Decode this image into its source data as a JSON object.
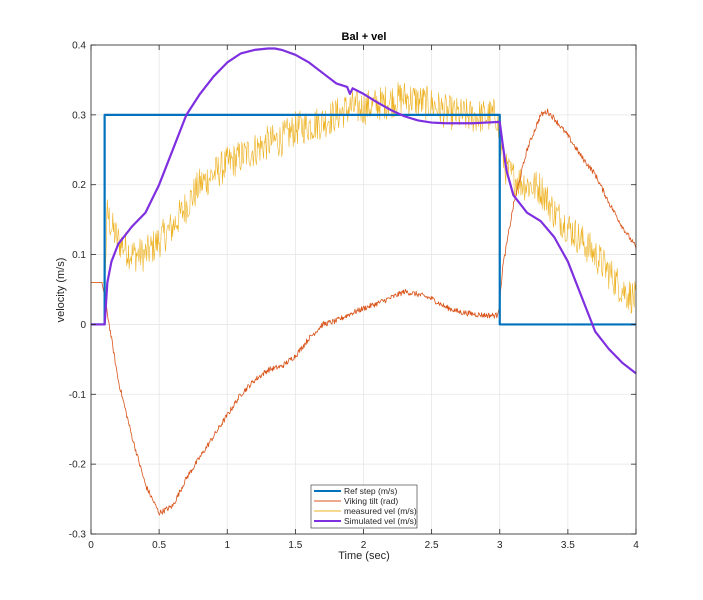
{
  "chart_data": {
    "type": "line",
    "title": "Bal + vel",
    "xlabel": "Time (sec)",
    "ylabel": "velocity (m/s)",
    "xlim": [
      0,
      4
    ],
    "ylim": [
      -0.3,
      0.4
    ],
    "xticks": [
      0,
      0.5,
      1,
      1.5,
      2,
      2.5,
      3,
      3.5,
      4
    ],
    "xtick_labels": [
      "0",
      "0.5",
      "1",
      "1.5",
      "2",
      "2.5",
      "3",
      "3.5",
      "4"
    ],
    "yticks": [
      -0.3,
      -0.2,
      -0.1,
      0,
      0.1,
      0.2,
      0.3,
      0.4
    ],
    "ytick_labels": [
      "-0.3",
      "-0.2",
      "-0.1",
      "0",
      "0.1",
      "0.2",
      "0.3",
      "0.4"
    ],
    "grid": true,
    "legend_position": "bottom-center",
    "series": [
      {
        "name": "Ref step (m/s)",
        "color": "#0072BD",
        "style": "step",
        "x": [
          0,
          0.1,
          0.1,
          3.0,
          3.0,
          4.0
        ],
        "y": [
          0,
          0,
          0.3,
          0.3,
          0,
          0
        ]
      },
      {
        "name": "Viking tilt (rad)",
        "color": "#D95319",
        "style": "noisy",
        "x": [
          0,
          0.08,
          0.1,
          0.15,
          0.2,
          0.3,
          0.4,
          0.5,
          0.6,
          0.7,
          0.8,
          0.9,
          1.0,
          1.1,
          1.2,
          1.3,
          1.4,
          1.5,
          1.6,
          1.7,
          1.8,
          1.9,
          2.0,
          2.1,
          2.2,
          2.3,
          2.4,
          2.5,
          2.6,
          2.7,
          2.8,
          2.9,
          2.98,
          3.0,
          3.02,
          3.1,
          3.2,
          3.3,
          3.35,
          3.4,
          3.5,
          3.6,
          3.7,
          3.8,
          3.9,
          4.0
        ],
        "y": [
          0.06,
          0.06,
          0.04,
          -0.02,
          -0.08,
          -0.16,
          -0.23,
          -0.27,
          -0.26,
          -0.22,
          -0.19,
          -0.16,
          -0.13,
          -0.1,
          -0.08,
          -0.065,
          -0.06,
          -0.045,
          -0.02,
          0.0,
          0.005,
          0.015,
          0.023,
          0.03,
          0.038,
          0.047,
          0.043,
          0.037,
          0.025,
          0.018,
          0.015,
          0.013,
          0.013,
          0.03,
          0.08,
          0.17,
          0.25,
          0.3,
          0.305,
          0.295,
          0.27,
          0.24,
          0.215,
          0.175,
          0.14,
          0.11
        ],
        "noise_amplitude": 0.004
      },
      {
        "name": "measured vel (m/s)",
        "color": "#EDB120",
        "style": "noisy",
        "x": [
          0,
          0.1,
          0.12,
          0.15,
          0.2,
          0.3,
          0.4,
          0.5,
          0.6,
          0.7,
          0.8,
          0.9,
          1.0,
          1.1,
          1.2,
          1.3,
          1.4,
          1.5,
          1.6,
          1.7,
          1.8,
          1.9,
          2.0,
          2.1,
          2.2,
          2.3,
          2.4,
          2.5,
          2.6,
          2.7,
          2.8,
          2.9,
          2.98,
          3.0,
          3.05,
          3.1,
          3.2,
          3.3,
          3.4,
          3.5,
          3.6,
          3.7,
          3.8,
          3.9,
          4.0
        ],
        "y": [
          0.06,
          0.06,
          0.16,
          0.14,
          0.12,
          0.1,
          0.1,
          0.12,
          0.14,
          0.17,
          0.2,
          0.215,
          0.23,
          0.24,
          0.25,
          0.26,
          0.265,
          0.28,
          0.285,
          0.29,
          0.3,
          0.31,
          0.31,
          0.315,
          0.32,
          0.325,
          0.32,
          0.315,
          0.305,
          0.3,
          0.298,
          0.298,
          0.3,
          0.26,
          0.22,
          0.21,
          0.2,
          0.195,
          0.16,
          0.14,
          0.12,
          0.1,
          0.075,
          0.05,
          0.035
        ],
        "noise_amplitude": 0.025
      },
      {
        "name": "Simulated vel (m/s)",
        "color": "#7E2FDF",
        "style": "smooth",
        "x": [
          0,
          0.1,
          0.12,
          0.15,
          0.2,
          0.3,
          0.4,
          0.5,
          0.6,
          0.7,
          0.8,
          0.9,
          1.0,
          1.1,
          1.2,
          1.3,
          1.35,
          1.4,
          1.5,
          1.6,
          1.7,
          1.8,
          1.88,
          1.9,
          1.92,
          2.0,
          2.1,
          2.2,
          2.3,
          2.4,
          2.5,
          2.6,
          2.7,
          2.8,
          2.9,
          3.0,
          3.02,
          3.05,
          3.1,
          3.2,
          3.3,
          3.4,
          3.5,
          3.6,
          3.7,
          3.8,
          3.9,
          4.0
        ],
        "y": [
          0,
          0,
          0.06,
          0.09,
          0.115,
          0.14,
          0.16,
          0.2,
          0.25,
          0.3,
          0.33,
          0.355,
          0.375,
          0.388,
          0.393,
          0.395,
          0.395,
          0.393,
          0.386,
          0.375,
          0.36,
          0.345,
          0.34,
          0.33,
          0.338,
          0.33,
          0.318,
          0.307,
          0.298,
          0.292,
          0.289,
          0.288,
          0.288,
          0.288,
          0.289,
          0.29,
          0.26,
          0.22,
          0.185,
          0.16,
          0.148,
          0.125,
          0.09,
          0.04,
          -0.01,
          -0.035,
          -0.055,
          -0.07
        ]
      }
    ],
    "legend": [
      {
        "label": "Ref step (m/s)",
        "color": "#0072BD",
        "width": 2
      },
      {
        "label": "Viking tilt (rad)",
        "color": "#D95319",
        "width": 1
      },
      {
        "label": "measured vel (m/s)",
        "color": "#EDB120",
        "width": 1
      },
      {
        "label": "Simulated vel (m/s)",
        "color": "#7E2FDF",
        "width": 2
      }
    ]
  }
}
